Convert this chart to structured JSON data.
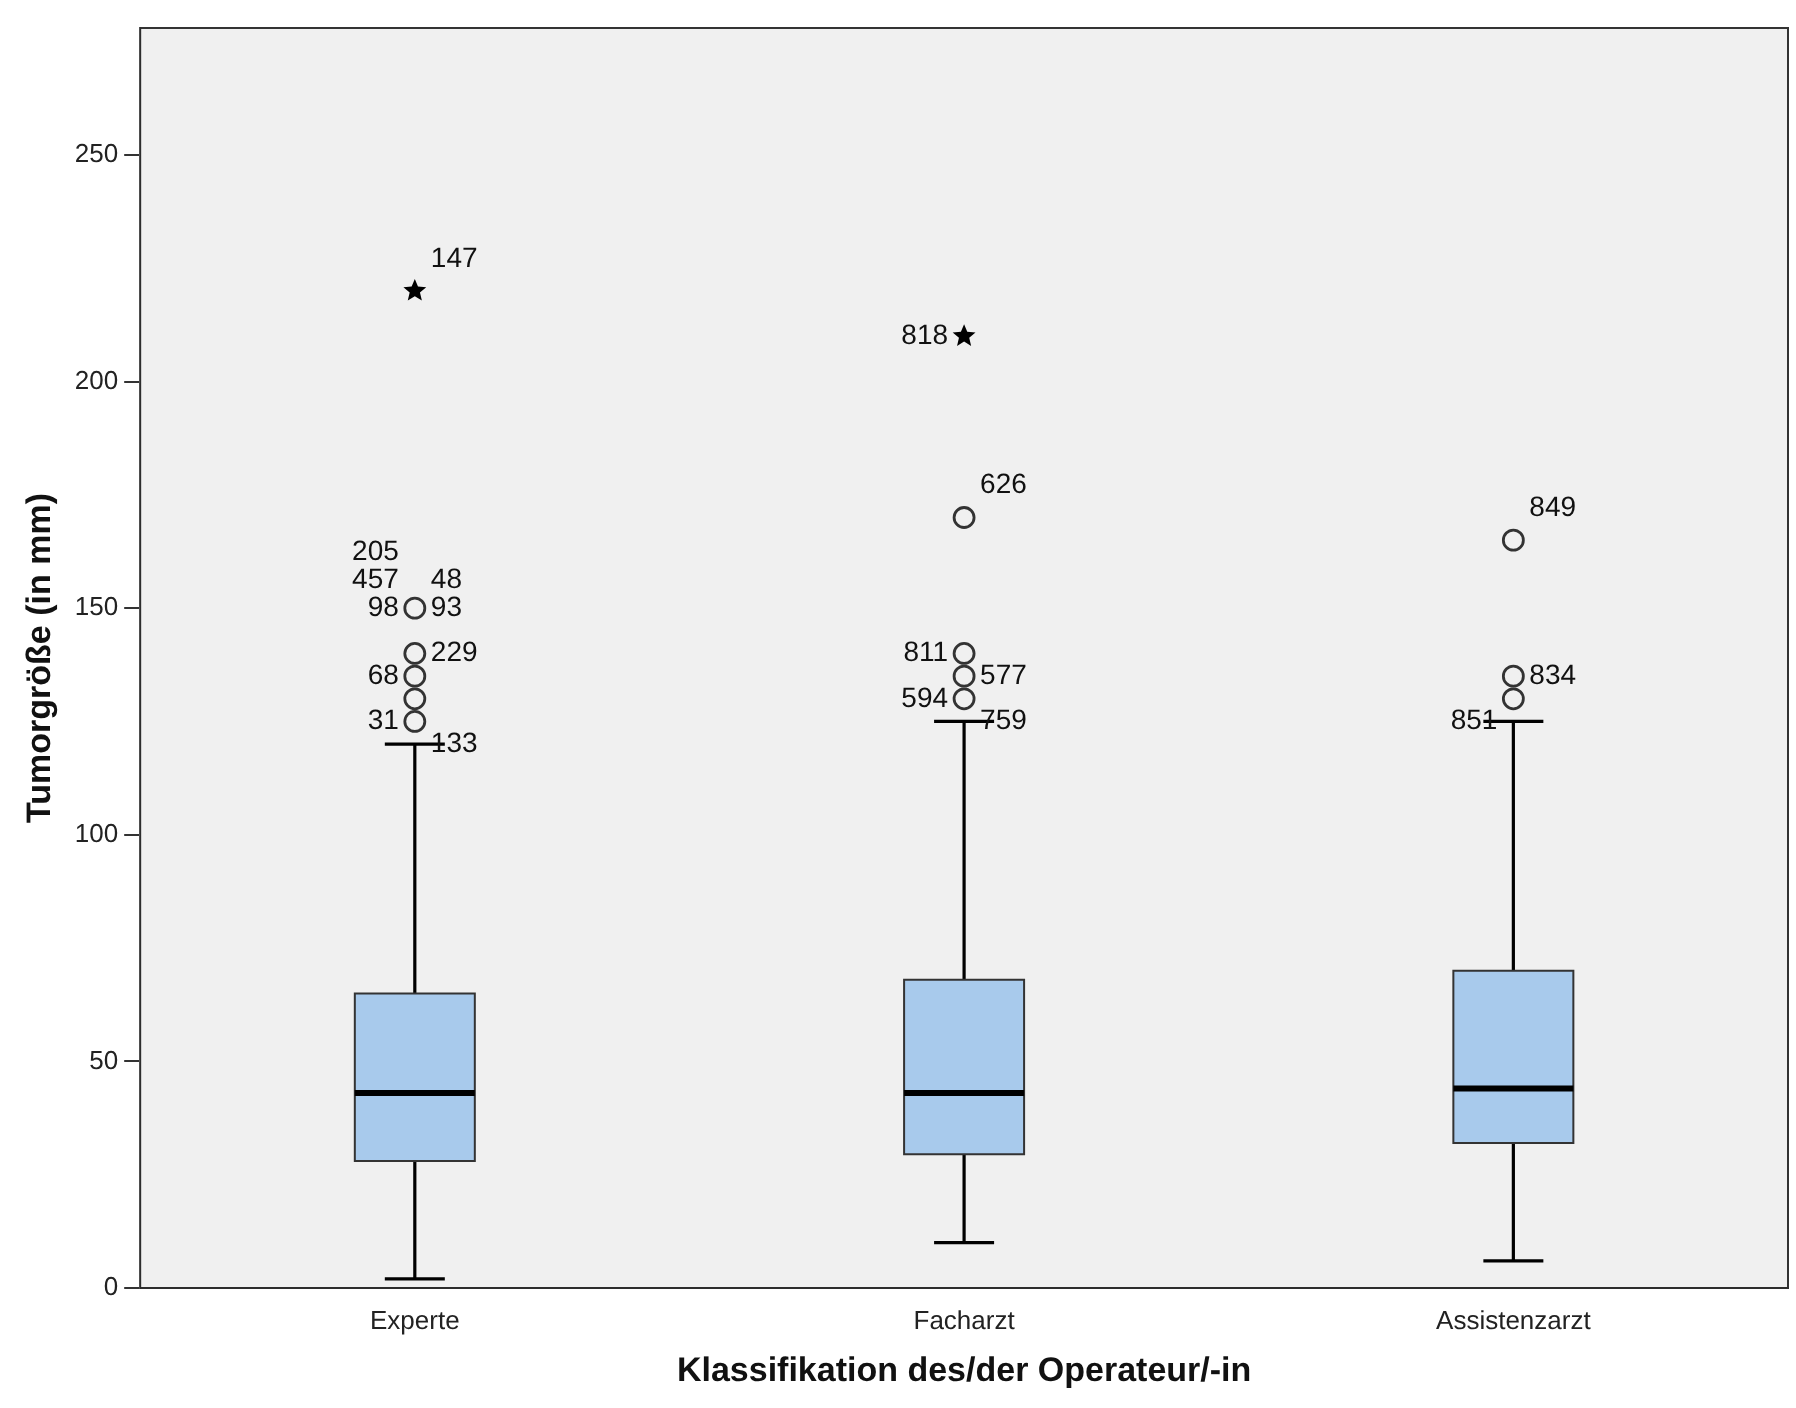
{
  "chart_data": {
    "type": "box",
    "xlabel": "Klassifikation des/der Operateur/-in",
    "ylabel": "Tumorgröße (in mm)",
    "categories": [
      "Experte",
      "Facharzt",
      "Assistenzarzt"
    ],
    "color": "#a8caec",
    "boxes": [
      {
        "low": 2,
        "q1": 28,
        "median": 43,
        "q3": 65,
        "high": 120
      },
      {
        "low": 10,
        "q1": 29.5,
        "median": 43,
        "q3": 68,
        "high": 125
      },
      {
        "low": 6,
        "q1": 32,
        "median": 44,
        "q3": 70,
        "high": 125
      }
    ],
    "series": [
      {
        "type": "scatter",
        "marker": "circle",
        "color": "#333333",
        "x": [
          "Experte",
          "Experte",
          "Experte",
          "Experte",
          "Experte",
          "Facharzt",
          "Facharzt",
          "Facharzt",
          "Facharzt",
          "Assistenzarzt",
          "Assistenzarzt",
          "Assistenzarzt"
        ],
        "values": [
          125,
          130,
          135,
          140,
          150,
          130,
          135,
          140,
          170,
          130,
          135,
          165
        ]
      },
      {
        "type": "scatter",
        "marker": "star",
        "color": "#000000",
        "x": [
          "Experte",
          "Facharzt"
        ],
        "values": [
          220,
          210
        ]
      }
    ],
    "ylim": [
      0,
      278
    ],
    "yticks": [
      0,
      50,
      100,
      150,
      200,
      250
    ],
    "grid": false,
    "legend": false,
    "annotations": [
      {
        "text": "147",
        "x": "Experte",
        "y": 220
      },
      {
        "text": "68",
        "x": "Experte",
        "y": 135
      },
      {
        "text": "229",
        "x": "Experte",
        "y": 140
      },
      {
        "text": "31",
        "x": "Experte",
        "y": 125
      },
      {
        "text": "133",
        "x": "Experte",
        "y": 120
      },
      {
        "text": "98",
        "x": "Experte",
        "y": 150
      },
      {
        "text": "93",
        "x": "Experte",
        "y": 150
      },
      {
        "text": "457",
        "x": "Experte",
        "y": 150
      },
      {
        "text": "48",
        "x": "Experte",
        "y": 150
      },
      {
        "text": "205",
        "x": "Experte",
        "y": 150
      },
      {
        "text": "626",
        "x": "Facharzt",
        "y": 170
      },
      {
        "text": "811",
        "x": "Facharzt",
        "y": 140
      },
      {
        "text": "577",
        "x": "Facharzt",
        "y": 135
      },
      {
        "text": "594",
        "x": "Facharzt",
        "y": 130
      },
      {
        "text": "759",
        "x": "Facharzt",
        "y": 125
      },
      {
        "text": "818",
        "x": "Facharzt",
        "y": 210
      },
      {
        "text": "849",
        "x": "Assistenzarzt",
        "y": 165
      },
      {
        "text": "851",
        "x": "Assistenzarzt",
        "y": 125
      },
      {
        "text": "834",
        "x": "Assistenzarzt",
        "y": 135
      }
    ]
  }
}
